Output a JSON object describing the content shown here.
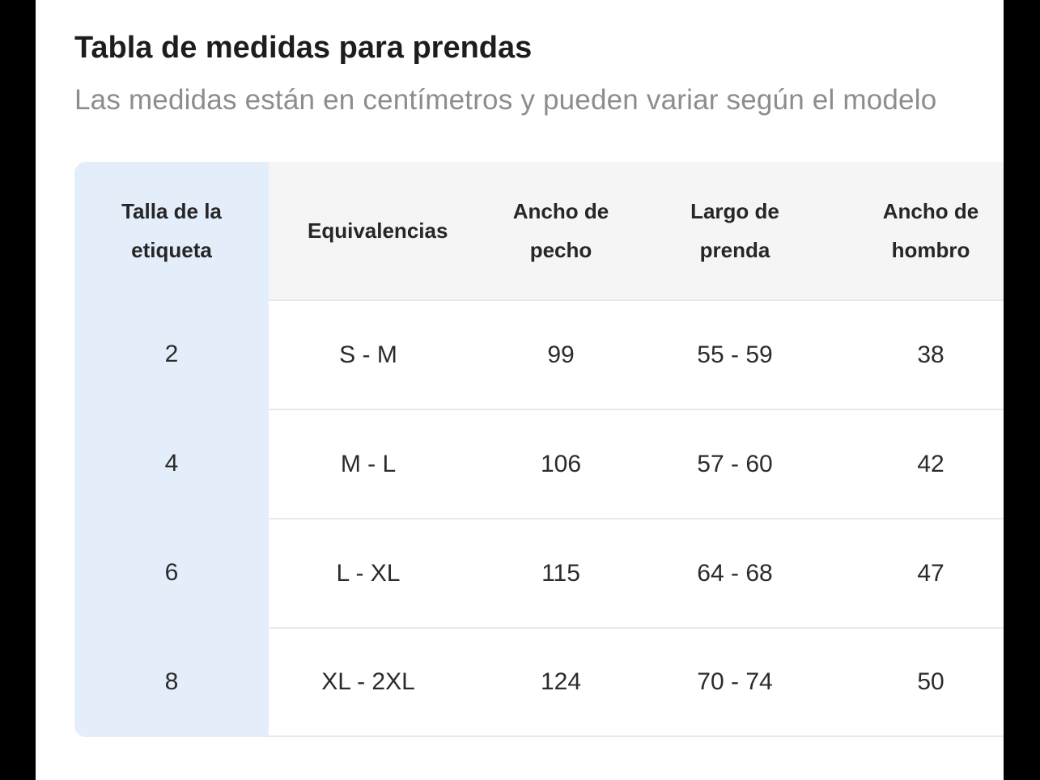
{
  "page": {
    "title": "Tabla de medidas para prendas",
    "subtitle": "Las medidas están en centímetros y pueden variar según el modelo"
  },
  "table": {
    "columns": [
      "Talla de la etiqueta",
      "Equivalencias",
      "Ancho de pecho",
      "Largo de prenda",
      "Ancho de hombro"
    ],
    "rows": [
      [
        "2",
        "S - M",
        "99",
        "55 - 59",
        "38"
      ],
      [
        "4",
        "M - L",
        "106",
        "57 - 60",
        "42"
      ],
      [
        "6",
        "L - XL",
        "115",
        "64 - 68",
        "47"
      ],
      [
        "8",
        "XL - 2XL",
        "124",
        "70 - 74",
        "50"
      ]
    ]
  },
  "colors": {
    "highlight_column_bg": "#e4eefb",
    "header_bg": "#f5f5f5",
    "divider": "#e9e9e9",
    "title_text": "#1d1d1d",
    "subtitle_text": "#8d8d8d",
    "letterbox": "#000000"
  }
}
